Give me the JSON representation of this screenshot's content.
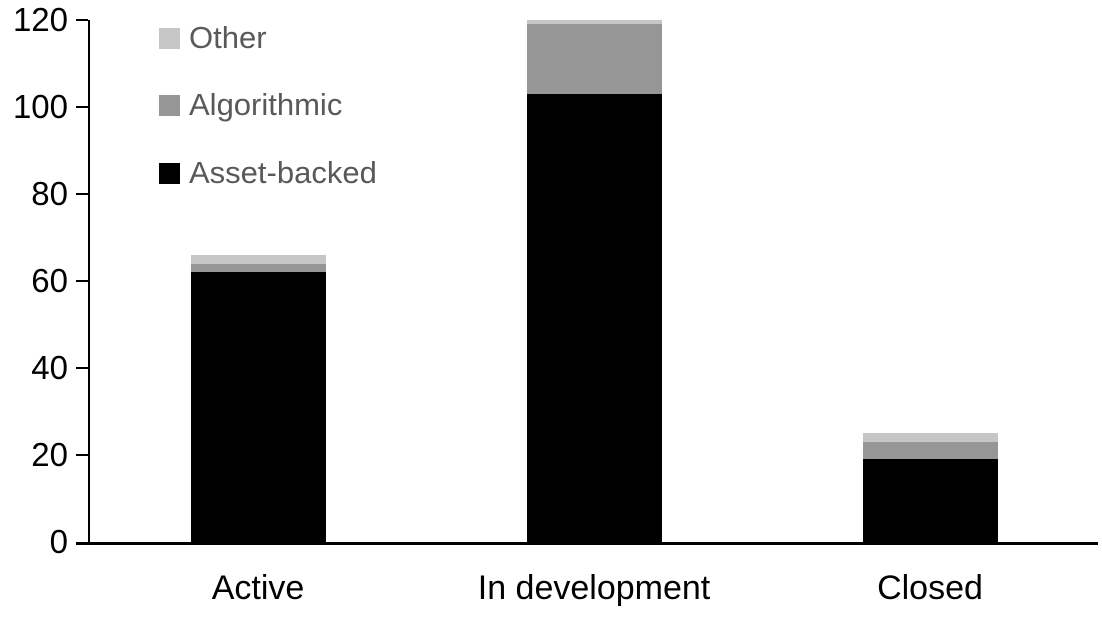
{
  "chart": {
    "background_color": "#ffffff",
    "axis_color": "#000000",
    "tick_label_color": "#000000",
    "legend_text_color": "#595959"
  },
  "chart_data": {
    "type": "bar",
    "stacked": true,
    "title": "",
    "xlabel": "",
    "ylabel": "",
    "categories": [
      "Active",
      "In development",
      "Closed"
    ],
    "series": [
      {
        "name": "Asset-backed",
        "color": "#000000",
        "values": [
          62,
          103,
          19
        ]
      },
      {
        "name": "Algorithmic",
        "color": "#969696",
        "values": [
          2,
          16,
          4
        ]
      },
      {
        "name": "Other",
        "color": "#c6c6c6",
        "values": [
          2,
          1,
          2
        ]
      }
    ],
    "totals": [
      66,
      120,
      25
    ],
    "legend_order": [
      "Other",
      "Algorithmic",
      "Asset-backed"
    ],
    "legend_position": "top-left",
    "ylim": [
      0,
      120
    ],
    "yticks": [
      0,
      20,
      40,
      60,
      80,
      100,
      120
    ],
    "grid": false
  }
}
